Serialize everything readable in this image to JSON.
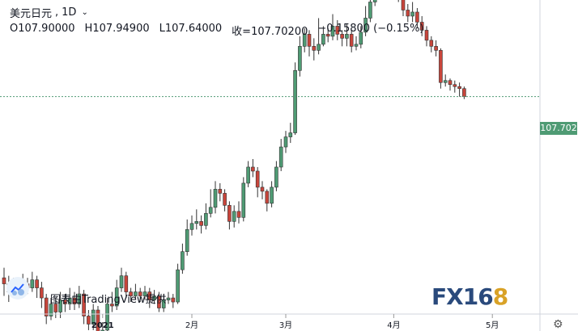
{
  "header": {
    "symbol": "美元日元",
    "interval": "1D",
    "open": "O107.90000",
    "high": "H107.94900",
    "low": "L107.64000",
    "close": "收=107.70200",
    "change": "−0.15800 (−0.15%)"
  },
  "price_tag": "107.702",
  "credit": "图表由TradingView提供",
  "watermark": {
    "main": "FX16",
    "tail": "8"
  },
  "colors": {
    "up": "#4f9b74",
    "down": "#c8453b",
    "axis": "#d1d4dc",
    "last_price_line": "#4f9b74"
  },
  "icons": {
    "settings": "gear-icon",
    "interval_menu": "chevron-down-icon",
    "logo": "tradingview-logo-icon"
  },
  "chart_data": {
    "type": "candlestick",
    "symbol": "USDJPY",
    "interval": "1D",
    "ylim": [
      102.3,
      110.1
    ],
    "last_price": 107.702,
    "x_ticks": [
      {
        "label": "2021",
        "index": 21,
        "bold": true
      },
      {
        "label": "2月",
        "index": 40
      },
      {
        "label": "3月",
        "index": 60
      },
      {
        "label": "4月",
        "index": 83
      },
      {
        "label": "5月",
        "index": 104
      }
    ],
    "candles": [
      [
        103.2,
        103.05,
        103.45,
        102.75
      ],
      [
        103.05,
        102.85,
        103.25,
        102.6
      ],
      [
        102.85,
        103.0,
        103.2,
        102.7
      ],
      [
        103.0,
        102.9,
        103.1,
        102.7
      ],
      [
        102.9,
        103.05,
        103.3,
        102.75
      ],
      [
        103.05,
        102.95,
        103.2,
        102.8
      ],
      [
        102.95,
        103.15,
        103.35,
        102.85
      ],
      [
        103.15,
        102.95,
        103.25,
        102.7
      ],
      [
        102.95,
        102.7,
        103.1,
        102.45
      ],
      [
        102.7,
        102.25,
        102.8,
        102.05
      ],
      [
        102.25,
        102.55,
        102.7,
        102.15
      ],
      [
        102.55,
        102.35,
        102.7,
        102.2
      ],
      [
        102.35,
        102.65,
        102.85,
        102.2
      ],
      [
        102.65,
        102.55,
        102.8,
        102.35
      ],
      [
        102.55,
        102.7,
        102.95,
        102.4
      ],
      [
        102.7,
        102.55,
        102.85,
        102.4
      ],
      [
        102.55,
        102.8,
        103.0,
        102.45
      ],
      [
        102.8,
        102.25,
        102.9,
        102.05
      ],
      [
        102.25,
        102.05,
        102.4,
        101.9
      ],
      [
        102.05,
        102.4,
        102.55,
        101.9
      ],
      [
        102.4,
        101.85,
        102.5,
        101.7
      ],
      [
        101.85,
        101.9,
        102.1,
        101.75
      ],
      [
        101.9,
        102.55,
        102.7,
        101.85
      ],
      [
        102.55,
        102.5,
        102.85,
        102.35
      ],
      [
        102.5,
        102.95,
        103.15,
        102.4
      ],
      [
        102.95,
        103.25,
        103.45,
        102.85
      ],
      [
        103.25,
        102.85,
        103.35,
        102.7
      ],
      [
        102.85,
        102.75,
        102.95,
        102.6
      ],
      [
        102.75,
        102.85,
        103.05,
        102.65
      ],
      [
        102.85,
        102.75,
        102.95,
        102.6
      ],
      [
        102.75,
        102.85,
        103.0,
        102.65
      ],
      [
        102.85,
        102.65,
        102.95,
        102.45
      ],
      [
        102.65,
        102.75,
        102.9,
        102.55
      ],
      [
        102.75,
        102.45,
        102.85,
        102.35
      ],
      [
        102.45,
        102.65,
        102.8,
        102.35
      ],
      [
        102.65,
        102.7,
        102.85,
        102.55
      ],
      [
        102.7,
        102.6,
        102.8,
        102.45
      ],
      [
        102.6,
        103.4,
        103.55,
        102.55
      ],
      [
        103.4,
        103.85,
        104.05,
        103.3
      ],
      [
        103.85,
        104.4,
        104.65,
        103.75
      ],
      [
        104.4,
        104.55,
        104.75,
        104.25
      ],
      [
        104.55,
        104.6,
        104.9,
        104.4
      ],
      [
        104.6,
        104.5,
        104.75,
        104.3
      ],
      [
        104.5,
        104.8,
        105.05,
        104.4
      ],
      [
        104.8,
        104.95,
        105.4,
        104.7
      ],
      [
        104.95,
        105.4,
        105.6,
        104.8
      ],
      [
        105.4,
        105.3,
        105.55,
        105.1
      ],
      [
        105.3,
        105.0,
        105.4,
        104.85
      ],
      [
        105.0,
        104.6,
        105.1,
        104.4
      ],
      [
        104.6,
        104.85,
        105.0,
        104.45
      ],
      [
        104.85,
        104.7,
        105.1,
        104.55
      ],
      [
        104.7,
        105.55,
        105.7,
        104.6
      ],
      [
        105.55,
        105.95,
        106.1,
        105.45
      ],
      [
        105.95,
        105.85,
        106.15,
        105.7
      ],
      [
        105.85,
        105.45,
        105.95,
        105.2
      ],
      [
        105.45,
        105.35,
        105.6,
        105.15
      ],
      [
        105.35,
        105.05,
        105.4,
        104.85
      ],
      [
        105.05,
        105.45,
        105.6,
        104.95
      ],
      [
        105.45,
        105.95,
        106.1,
        105.35
      ],
      [
        105.95,
        106.45,
        106.65,
        105.85
      ],
      [
        106.45,
        106.7,
        106.85,
        106.3
      ],
      [
        106.7,
        106.8,
        107.05,
        106.55
      ],
      [
        106.8,
        108.35,
        108.55,
        106.75
      ],
      [
        108.35,
        108.95,
        109.2,
        108.2
      ],
      [
        108.95,
        109.25,
        109.4,
        108.8
      ],
      [
        109.25,
        108.95,
        109.35,
        108.7
      ],
      [
        108.95,
        108.85,
        109.15,
        108.6
      ],
      [
        108.85,
        109.0,
        109.65,
        108.75
      ],
      [
        109.0,
        109.25,
        109.45,
        108.95
      ],
      [
        109.25,
        109.2,
        109.4,
        109.05
      ],
      [
        109.2,
        109.45,
        109.75,
        109.1
      ],
      [
        109.45,
        109.25,
        109.6,
        109.1
      ],
      [
        109.25,
        109.15,
        109.35,
        108.95
      ],
      [
        109.15,
        109.25,
        109.5,
        108.95
      ],
      [
        109.25,
        108.95,
        109.35,
        108.8
      ],
      [
        108.95,
        109.0,
        109.2,
        108.85
      ],
      [
        109.0,
        109.3,
        109.45,
        108.9
      ],
      [
        109.3,
        109.65,
        109.95,
        109.2
      ],
      [
        109.65,
        110.05,
        110.25,
        109.55
      ],
      [
        110.05,
        110.55,
        110.75,
        109.95
      ],
      [
        110.55,
        110.7,
        110.85,
        110.45
      ],
      [
        110.7,
        110.55,
        110.8,
        110.35
      ],
      [
        110.55,
        110.75,
        110.95,
        110.4
      ],
      [
        110.75,
        110.4,
        110.8,
        110.25
      ],
      [
        110.4,
        110.25,
        110.5,
        110.05
      ],
      [
        110.25,
        109.85,
        110.35,
        109.7
      ],
      [
        109.85,
        109.7,
        110.0,
        109.55
      ],
      [
        109.7,
        109.8,
        110.05,
        109.55
      ],
      [
        109.8,
        109.55,
        109.9,
        109.4
      ],
      [
        109.55,
        109.35,
        109.7,
        109.2
      ],
      [
        109.35,
        109.1,
        109.45,
        108.95
      ],
      [
        109.1,
        108.95,
        109.2,
        108.8
      ],
      [
        108.95,
        108.85,
        109.1,
        108.7
      ],
      [
        108.85,
        108.05,
        108.9,
        107.9
      ],
      [
        108.05,
        108.1,
        108.25,
        107.95
      ],
      [
        108.1,
        108.0,
        108.15,
        107.85
      ],
      [
        108.0,
        107.95,
        108.1,
        107.8
      ],
      [
        107.95,
        107.9,
        108.05,
        107.7
      ],
      [
        107.9,
        107.7,
        107.95,
        107.64
      ]
    ]
  }
}
